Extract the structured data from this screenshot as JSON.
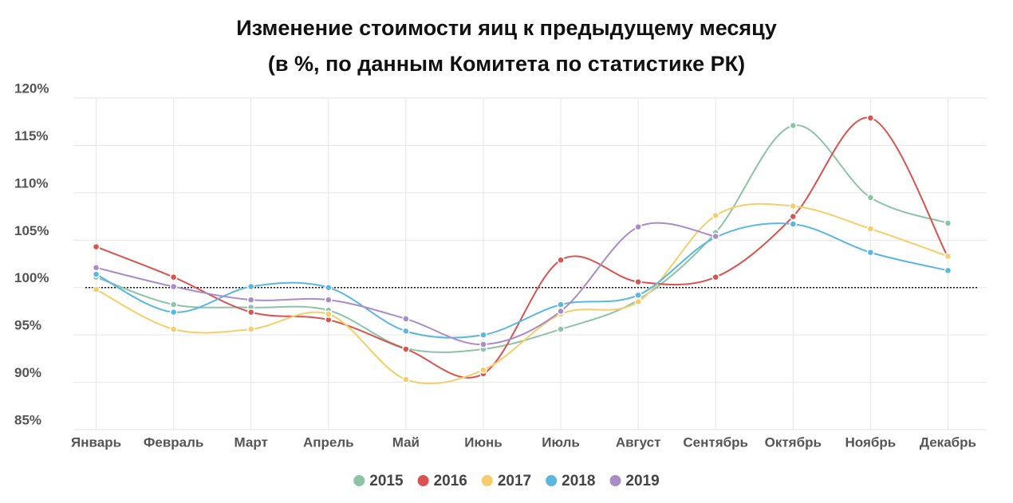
{
  "chart_data": {
    "type": "line",
    "title": "Изменение стоимости яиц к предыдущему месяцу",
    "subtitle": "(в %, по данным Комитета по статистике РК)",
    "categories": [
      "Январь",
      "Февраль",
      "Март",
      "Апрель",
      "Май",
      "Июнь",
      "Июль",
      "Август",
      "Сентябрь",
      "Октябрь",
      "Ноябрь",
      "Декабрь"
    ],
    "series": [
      {
        "name": "2015",
        "color": "#8dc3a7",
        "values": [
          101.1,
          98.2,
          97.9,
          97.6,
          93.6,
          93.5,
          95.6,
          98.7,
          105.8,
          117.1,
          109.5,
          106.8
        ]
      },
      {
        "name": "2016",
        "color": "#d9534f",
        "values": [
          104.3,
          101.1,
          97.4,
          96.6,
          93.5,
          90.9,
          102.9,
          100.6,
          101.1,
          107.5,
          117.9,
          103.2
        ]
      },
      {
        "name": "2017",
        "color": "#f5ce6b",
        "values": [
          99.8,
          95.6,
          95.6,
          97.2,
          90.3,
          91.3,
          97.2,
          98.5,
          107.6,
          108.6,
          106.2,
          103.3
        ]
      },
      {
        "name": "2018",
        "color": "#5bb7e0",
        "values": [
          101.4,
          97.4,
          100.1,
          100.0,
          95.4,
          95.0,
          98.2,
          99.2,
          105.3,
          106.7,
          103.7,
          101.8
        ]
      },
      {
        "name": "2019",
        "color": "#a98cc8",
        "values": [
          102.1,
          100.1,
          98.7,
          98.7,
          96.7,
          94.0,
          97.5,
          106.4,
          105.4,
          null,
          null,
          null
        ]
      }
    ],
    "ylim": [
      85,
      120
    ],
    "yticks": [
      {
        "value": 85,
        "label": "85%"
      },
      {
        "value": 90,
        "label": "90%"
      },
      {
        "value": 95,
        "label": "95%"
      },
      {
        "value": 100,
        "label": "100%"
      },
      {
        "value": 105,
        "label": "105%"
      },
      {
        "value": 110,
        "label": "110%"
      },
      {
        "value": 115,
        "label": "115%"
      },
      {
        "value": 120,
        "label": "120%"
      }
    ],
    "reference_line": 100,
    "grid": true,
    "legend": "bottom"
  }
}
